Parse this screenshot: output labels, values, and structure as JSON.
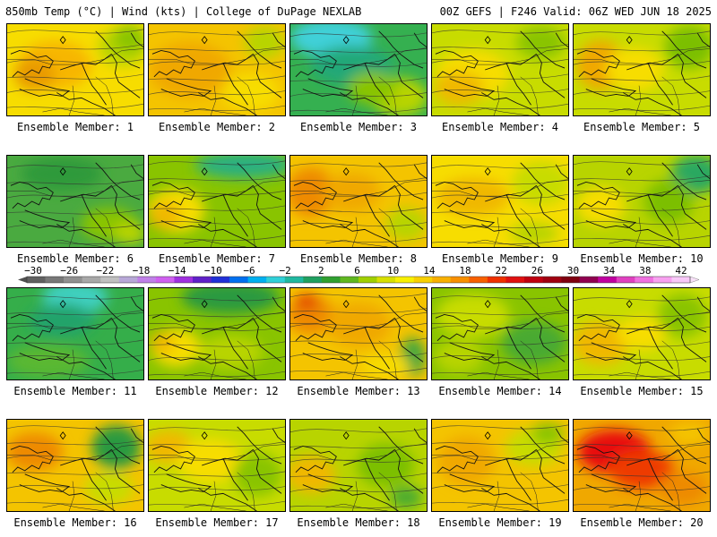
{
  "header": {
    "left": "850mb Temp (°C) | Wind (kts) | College of DuPage NEXLAB",
    "right": "00Z GEFS | F246 Valid: 06Z WED JUN 18 2025"
  },
  "members": [
    {
      "label": "Ensemble Member: 1",
      "base": "#f7dd00",
      "blobs": [
        [
          "#f7b600",
          0.35,
          0.45,
          0.45,
          0.45
        ],
        [
          "#e89a00",
          0.2,
          0.55,
          0.25,
          0.3
        ],
        [
          "#b8d400",
          0.85,
          0.25,
          0.3,
          0.35
        ],
        [
          "#89c400",
          0.9,
          0.15,
          0.2,
          0.25
        ]
      ]
    },
    {
      "label": "Ensemble Member: 2",
      "base": "#f4c400",
      "blobs": [
        [
          "#f0a800",
          0.3,
          0.5,
          0.5,
          0.5
        ],
        [
          "#f7dd00",
          0.75,
          0.75,
          0.35,
          0.35
        ],
        [
          "#b8d400",
          0.85,
          0.2,
          0.25,
          0.3
        ]
      ]
    },
    {
      "label": "Ensemble Member: 3",
      "base": "#35b050",
      "blobs": [
        [
          "#3fd0d8",
          0.3,
          0.15,
          0.5,
          0.35
        ],
        [
          "#20a878",
          0.45,
          0.45,
          0.5,
          0.35
        ],
        [
          "#b8d400",
          0.8,
          0.8,
          0.35,
          0.35
        ],
        [
          "#89c400",
          0.6,
          0.7,
          0.3,
          0.3
        ]
      ]
    },
    {
      "label": "Ensemble Member: 4",
      "base": "#c8dc00",
      "blobs": [
        [
          "#f7dd00",
          0.3,
          0.55,
          0.45,
          0.45
        ],
        [
          "#f0b800",
          0.2,
          0.7,
          0.3,
          0.3
        ],
        [
          "#89c400",
          0.8,
          0.2,
          0.3,
          0.3
        ]
      ]
    },
    {
      "label": "Ensemble Member: 5",
      "base": "#c8dc00",
      "blobs": [
        [
          "#f0a800",
          0.2,
          0.45,
          0.3,
          0.45
        ],
        [
          "#f7dd00",
          0.45,
          0.5,
          0.35,
          0.4
        ],
        [
          "#7cbf00",
          0.85,
          0.25,
          0.3,
          0.4
        ]
      ]
    },
    {
      "label": "Ensemble Member: 6",
      "base": "#4aaa40",
      "blobs": [
        [
          "#2d9a3a",
          0.4,
          0.2,
          0.5,
          0.3
        ],
        [
          "#89c400",
          0.75,
          0.75,
          0.35,
          0.3
        ],
        [
          "#b8d400",
          0.9,
          0.85,
          0.2,
          0.2
        ]
      ]
    },
    {
      "label": "Ensemble Member: 7",
      "base": "#89c400",
      "blobs": [
        [
          "#2bb080",
          0.7,
          0.1,
          0.6,
          0.25
        ],
        [
          "#f7dd00",
          0.2,
          0.6,
          0.35,
          0.4
        ],
        [
          "#f0b800",
          0.12,
          0.65,
          0.2,
          0.25
        ]
      ]
    },
    {
      "label": "Ensemble Member: 8",
      "base": "#f4c400",
      "blobs": [
        [
          "#ee8a00",
          0.15,
          0.4,
          0.3,
          0.45
        ],
        [
          "#f0a800",
          0.45,
          0.4,
          0.35,
          0.35
        ],
        [
          "#b8d400",
          0.85,
          0.75,
          0.25,
          0.3
        ]
      ]
    },
    {
      "label": "Ensemble Member: 9",
      "base": "#f7dd00",
      "blobs": [
        [
          "#f0b800",
          0.3,
          0.45,
          0.45,
          0.35
        ],
        [
          "#c8dc00",
          0.8,
          0.3,
          0.35,
          0.4
        ],
        [
          "#b8d400",
          0.75,
          0.85,
          0.3,
          0.2
        ]
      ]
    },
    {
      "label": "Ensemble Member: 10",
      "base": "#b8d400",
      "blobs": [
        [
          "#2aa860",
          0.9,
          0.2,
          0.3,
          0.35
        ],
        [
          "#f7dd00",
          0.2,
          0.55,
          0.3,
          0.35
        ],
        [
          "#7cbf00",
          0.7,
          0.5,
          0.3,
          0.4
        ]
      ]
    },
    {
      "label": "Ensemble Member: 11",
      "base": "#35ae4a",
      "blobs": [
        [
          "#3fd0c0",
          0.5,
          0.1,
          0.4,
          0.3
        ],
        [
          "#22a36a",
          0.4,
          0.35,
          0.4,
          0.3
        ],
        [
          "#5ab830",
          0.3,
          0.8,
          0.5,
          0.3
        ]
      ]
    },
    {
      "label": "Ensemble Member: 12",
      "base": "#89c400",
      "blobs": [
        [
          "#2a9a40",
          0.6,
          0.1,
          0.6,
          0.3
        ],
        [
          "#f7dd00",
          0.2,
          0.65,
          0.3,
          0.35
        ],
        [
          "#f0b800",
          0.1,
          0.6,
          0.15,
          0.2
        ],
        [
          "#b8d400",
          0.6,
          0.7,
          0.4,
          0.3
        ]
      ]
    },
    {
      "label": "Ensemble Member: 13",
      "base": "#f4c400",
      "blobs": [
        [
          "#ee8a00",
          0.15,
          0.3,
          0.3,
          0.35
        ],
        [
          "#e44a00",
          0.12,
          0.15,
          0.15,
          0.15
        ],
        [
          "#f0a800",
          0.5,
          0.4,
          0.4,
          0.4
        ],
        [
          "#3fa640",
          0.9,
          0.75,
          0.15,
          0.35
        ],
        [
          "#f7dd00",
          0.7,
          0.85,
          0.3,
          0.2
        ]
      ]
    },
    {
      "label": "Ensemble Member: 14",
      "base": "#89c400",
      "blobs": [
        [
          "#c8dc00",
          0.3,
          0.3,
          0.45,
          0.4
        ],
        [
          "#4aaa30",
          0.75,
          0.6,
          0.4,
          0.4
        ],
        [
          "#b8d400",
          0.2,
          0.75,
          0.3,
          0.3
        ]
      ]
    },
    {
      "label": "Ensemble Member: 15",
      "base": "#c8dc00",
      "blobs": [
        [
          "#f0b800",
          0.2,
          0.6,
          0.35,
          0.4
        ],
        [
          "#f7dd00",
          0.5,
          0.5,
          0.3,
          0.3
        ],
        [
          "#89c400",
          0.8,
          0.3,
          0.3,
          0.4
        ]
      ]
    },
    {
      "label": "Ensemble Member: 16",
      "base": "#f4c400",
      "blobs": [
        [
          "#ee8a00",
          0.2,
          0.35,
          0.35,
          0.35
        ],
        [
          "#2a9a40",
          0.8,
          0.3,
          0.3,
          0.4
        ],
        [
          "#c8dc00",
          0.75,
          0.75,
          0.3,
          0.3
        ]
      ]
    },
    {
      "label": "Ensemble Member: 17",
      "base": "#c8dc00",
      "blobs": [
        [
          "#f0b800",
          0.15,
          0.3,
          0.3,
          0.3
        ],
        [
          "#f7dd00",
          0.45,
          0.45,
          0.4,
          0.4
        ],
        [
          "#89c400",
          0.8,
          0.6,
          0.3,
          0.4
        ]
      ]
    },
    {
      "label": "Ensemble Member: 18",
      "base": "#b8d400",
      "blobs": [
        [
          "#f0b800",
          0.15,
          0.6,
          0.3,
          0.35
        ],
        [
          "#7cbf00",
          0.7,
          0.5,
          0.35,
          0.4
        ],
        [
          "#4aaa30",
          0.85,
          0.85,
          0.2,
          0.2
        ]
      ]
    },
    {
      "label": "Ensemble Member: 19",
      "base": "#f4c400",
      "blobs": [
        [
          "#f0a800",
          0.25,
          0.45,
          0.35,
          0.45
        ],
        [
          "#c8dc00",
          0.75,
          0.3,
          0.35,
          0.35
        ],
        [
          "#89c400",
          0.85,
          0.15,
          0.2,
          0.2
        ]
      ]
    },
    {
      "label": "Ensemble Member: 20",
      "base": "#f0a800",
      "blobs": [
        [
          "#e81010",
          0.3,
          0.35,
          0.45,
          0.4
        ],
        [
          "#ee3a00",
          0.5,
          0.55,
          0.4,
          0.35
        ],
        [
          "#ee8a00",
          0.8,
          0.75,
          0.3,
          0.3
        ],
        [
          "#f4c400",
          0.85,
          0.15,
          0.25,
          0.2
        ]
      ]
    }
  ],
  "scale": {
    "ticks": [
      "-30",
      "-26",
      "-22",
      "-18",
      "-14",
      "-10",
      "-6",
      "-2",
      "2",
      "6",
      "10",
      "14",
      "18",
      "22",
      "26",
      "30",
      "34",
      "38",
      "42"
    ],
    "colors": [
      "#606060",
      "#787878",
      "#909090",
      "#a8a8a8",
      "#c0c0c0",
      "#b8a8d8",
      "#c080e8",
      "#d060f0",
      "#a030e0",
      "#6020c8",
      "#2030d8",
      "#0070f0",
      "#00b0f0",
      "#30d0d8",
      "#20b8a0",
      "#20a060",
      "#30a030",
      "#60b820",
      "#a0d000",
      "#d8e000",
      "#f8f000",
      "#f8d000",
      "#f8b000",
      "#f89000",
      "#f86000",
      "#f03000",
      "#e01010",
      "#c00010",
      "#a00010",
      "#800010",
      "#900050",
      "#c000a0",
      "#e040c0",
      "#f070e0",
      "#f8a0f0",
      "#f8c8f8"
    ]
  }
}
